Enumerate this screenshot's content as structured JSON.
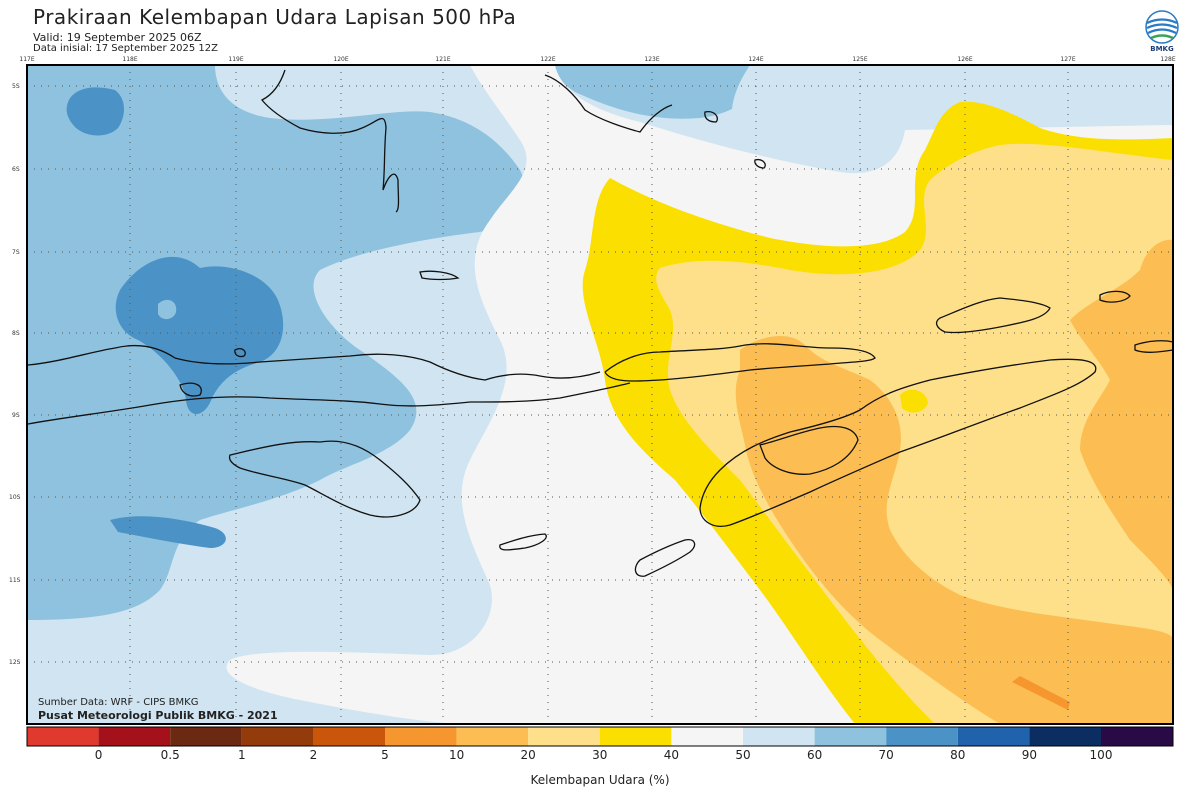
{
  "header": {
    "title": "Prakiraan Kelembapan Udara Lapisan 500 hPa",
    "valid": "Valid: 19 September 2025 06Z",
    "init": "Data inisial: 17 September 2025 12Z",
    "logo_text": "BMKG"
  },
  "map": {
    "lon_labels": [
      "117E",
      "118E",
      "119E",
      "120E",
      "121E",
      "122E",
      "123E",
      "124E",
      "125E",
      "126E",
      "127E",
      "128E"
    ],
    "lat_labels": [
      "5S",
      "6S",
      "7S",
      "8S",
      "9S",
      "10S",
      "11S",
      "12S"
    ]
  },
  "colorbar": {
    "colors": [
      "#e03a2f",
      "#a5111a",
      "#6b2912",
      "#943b0c",
      "#c9560b",
      "#f5962f",
      "#fcbe53",
      "#fde089",
      "#fbdf00",
      "#f5f5f5",
      "#d0e5f1",
      "#8fc2de",
      "#4b93c6",
      "#2062ac",
      "#0b2d61",
      "#2a0947"
    ],
    "labels": [
      "0",
      "0.5",
      "1",
      "2",
      "5",
      "10",
      "20",
      "30",
      "40",
      "50",
      "60",
      "70",
      "80",
      "90",
      "100"
    ],
    "title": "Kelembapan Udara (%)"
  },
  "source": {
    "line1": "Sumber Data: WRF - CIPS BMKG",
    "line2": "Pusat Meteorologi Publik BMKG - 2021"
  }
}
